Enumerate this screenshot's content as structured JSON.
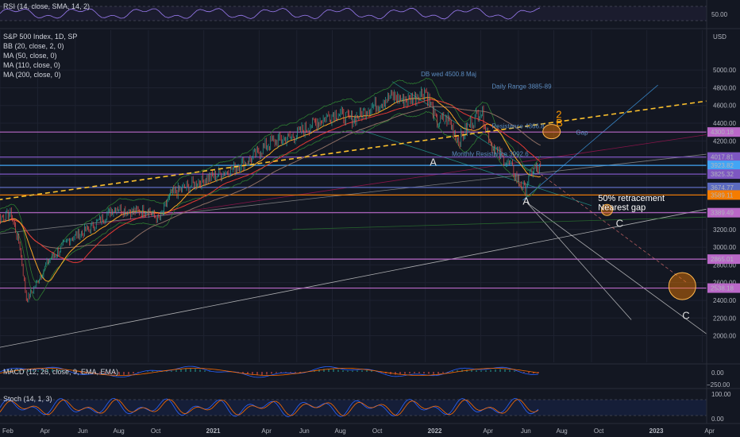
{
  "colors": {
    "background": "#131722",
    "grid": "#1e2230",
    "price_up": "#26a69a",
    "price_down": "#ef5350",
    "bb": "#2e7d32",
    "ma50": "#f9a825",
    "ma110": "#e53935",
    "ma200": "#8d6e63",
    "trend_yellow": "#fbc02d",
    "level_magenta": "#ba68c8",
    "rsi": "#9c7cf3",
    "macd": "#2962ff",
    "macd_signal": "#ff6d00",
    "stoch_k": "#2962ff",
    "stoch_d": "#ff6d00"
  },
  "rsi_pane": {
    "label": "RSI (14, close, SMA, 14, 2)",
    "tick": "50.00",
    "mid": 50
  },
  "main_pane": {
    "currency": "USD",
    "legend": [
      "S&P 500 Index, 1D, SP",
      "BB (20, close, 2, 0)",
      "MA (50, close, 0)",
      "MA (110, close, 0)",
      "MA (200, close, 0)"
    ],
    "annotations": [
      {
        "text": "DB wed 4500.8 Maj",
        "x": 2021.98,
        "y": 4930
      },
      {
        "text": "Daily Range 3885-89",
        "x": 2022.3,
        "y": 4790
      },
      {
        "text": "Resistance 4366.8",
        "x": 2022.3,
        "y": 4340
      },
      {
        "text": "Monthly Resistance 3992.6",
        "x": 2022.12,
        "y": 4030
      },
      {
        "text": "Gap",
        "x": 2022.68,
        "y": 4270
      },
      {
        "text": "50% retracement",
        "x": 2022.78,
        "y": 3520
      },
      {
        "text": "Nearest gap",
        "x": 2022.78,
        "y": 3420
      },
      {
        "text": "2",
        "x": 2022.59,
        "y": 4460
      },
      {
        "text": "B",
        "x": 2022.59,
        "y": 4365
      },
      {
        "text": "A",
        "x": 2022.02,
        "y": 3920
      },
      {
        "text": "A",
        "x": 2022.44,
        "y": 3480
      },
      {
        "text": "C",
        "x": 2022.86,
        "y": 3230
      },
      {
        "text": "C",
        "x": 2023.16,
        "y": 2190
      }
    ]
  },
  "macd_pane": {
    "label": "MACD (12, 26, close, 9, EMA, EMA)",
    "ticks": [
      "0.00",
      "−250.00"
    ]
  },
  "stoch_pane": {
    "label": "Stoch (14, 1, 3)",
    "ticks": [
      "100.00",
      "0.00"
    ]
  },
  "chart_data": {
    "type": "line",
    "title": "S&P 500 Index, 1D, SP",
    "ylabel": "USD",
    "xlim": [
      2020.08,
      2023.27
    ],
    "ylim": [
      1700,
      5450
    ],
    "y_ticks": [
      2000,
      2200,
      2400,
      2600,
      2800,
      3000,
      3200,
      3400,
      3600,
      3800,
      4000,
      4200,
      4400,
      4600,
      4800,
      5000
    ],
    "x_ticks": [
      {
        "label": "Feb",
        "x": 2020.08
      },
      {
        "label": "Apr",
        "x": 2020.25
      },
      {
        "label": "Jun",
        "x": 2020.42
      },
      {
        "label": "Aug",
        "x": 2020.58
      },
      {
        "label": "Oct",
        "x": 2020.75
      },
      {
        "label": "2021",
        "x": 2021.0
      },
      {
        "label": "Apr",
        "x": 2021.25
      },
      {
        "label": "Jun",
        "x": 2021.42
      },
      {
        "label": "Aug",
        "x": 2021.58
      },
      {
        "label": "Oct",
        "x": 2021.75
      },
      {
        "label": "2022",
        "x": 2022.0
      },
      {
        "label": "Apr",
        "x": 2022.25
      },
      {
        "label": "Jun",
        "x": 2022.42
      },
      {
        "label": "Aug",
        "x": 2022.58
      },
      {
        "label": "Oct",
        "x": 2022.75
      },
      {
        "label": "2023",
        "x": 2023.0
      },
      {
        "label": "Apr",
        "x": 2023.25
      }
    ],
    "series": [
      {
        "name": "S&P 500 Index",
        "x": [
          2020.0,
          2020.13,
          2020.17,
          2020.2,
          2020.22,
          2020.3,
          2020.4,
          2020.48,
          2020.6,
          2020.67,
          2020.75,
          2020.8,
          2020.85,
          2021.0,
          2021.1,
          2021.2,
          2021.3,
          2021.4,
          2021.5,
          2021.6,
          2021.67,
          2021.75,
          2021.85,
          2021.92,
          2022.0,
          2022.05,
          2022.1,
          2022.15,
          2022.2,
          2022.25,
          2022.3,
          2022.35,
          2022.38,
          2022.42,
          2022.45,
          2022.48,
          2022.52
        ],
        "values": [
          3250,
          3380,
          3000,
          2400,
          2480,
          2850,
          3100,
          3200,
          3450,
          3400,
          3420,
          3300,
          3600,
          3760,
          3850,
          3970,
          4180,
          4250,
          4400,
          4520,
          4430,
          4580,
          4700,
          4650,
          4780,
          4400,
          4450,
          4200,
          4380,
          4550,
          4150,
          4000,
          3930,
          3750,
          3660,
          3860,
          3900
        ]
      }
    ],
    "horizontal_levels": [
      {
        "label": "4300.18",
        "value": 4300.18,
        "color": "#ba68c8"
      },
      {
        "label": "4017.81",
        "value": 4017.81,
        "color": "#7e57c2"
      },
      {
        "label": "3923.82",
        "value": 3923.82,
        "color": "#42a5f5"
      },
      {
        "label": "3825.32",
        "value": 3825.32,
        "color": "#7e57c2"
      },
      {
        "label": "3674.77",
        "value": 3674.77,
        "color": "#5c6bc0"
      },
      {
        "label": "3589.11",
        "value": 3589.11,
        "color": "#f57c00"
      },
      {
        "label": "3389.49",
        "value": 3389.49,
        "color": "#ba68c8"
      },
      {
        "label": "2865.01",
        "value": 2865.01,
        "color": "#ba68c8"
      },
      {
        "label": "2538.18",
        "value": 2538.18,
        "color": "#ba68c8"
      }
    ]
  }
}
